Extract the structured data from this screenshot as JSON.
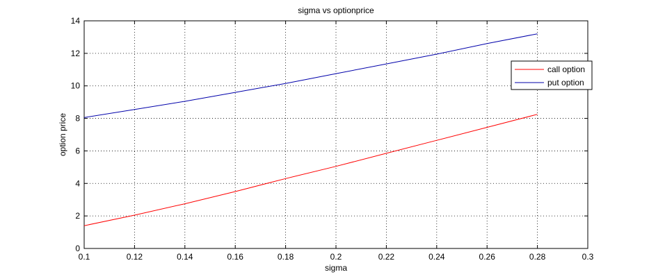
{
  "chart_data": {
    "type": "line",
    "title": "sigma vs optionprice",
    "xlabel": "sigma",
    "ylabel": "option price",
    "xlim": [
      0.1,
      0.3
    ],
    "ylim": [
      0,
      14
    ],
    "xticks": [
      "0.1",
      "0.12",
      "0.14",
      "0.16",
      "0.18",
      "0.2",
      "0.22",
      "0.24",
      "0.26",
      "0.28",
      "0.3"
    ],
    "yticks": [
      "0",
      "2",
      "4",
      "6",
      "8",
      "10",
      "12",
      "14"
    ],
    "grid": true,
    "legend_position": "top-right",
    "series": [
      {
        "name": "call option",
        "color": "#ff0000",
        "x": [
          0.1,
          0.12,
          0.14,
          0.16,
          0.18,
          0.2,
          0.22,
          0.24,
          0.26,
          0.28
        ],
        "y": [
          1.4,
          2.05,
          2.75,
          3.5,
          4.3,
          5.05,
          5.85,
          6.65,
          7.45,
          8.25
        ]
      },
      {
        "name": "put option",
        "color": "#0000aa",
        "x": [
          0.1,
          0.12,
          0.14,
          0.16,
          0.18,
          0.2,
          0.22,
          0.24,
          0.26,
          0.28
        ],
        "y": [
          8.05,
          8.55,
          9.05,
          9.6,
          10.15,
          10.75,
          11.35,
          11.95,
          12.6,
          13.2
        ]
      }
    ]
  }
}
